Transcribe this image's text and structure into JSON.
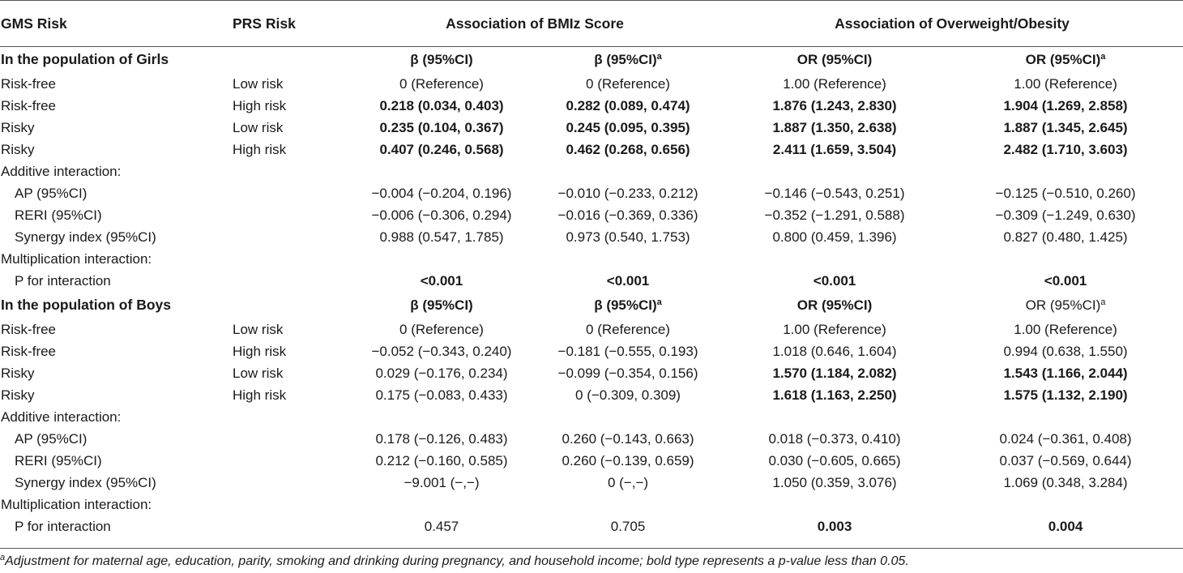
{
  "headers": {
    "col_gms": "GMS Risk",
    "col_prs": "PRS Risk",
    "group_bmiz": "Association of BMIz Score",
    "group_ow": "Association of Overweight/Obesity"
  },
  "subheaders": {
    "beta_label": "β (95%CI)",
    "or_label": "OR (95%CI)",
    "adjusted_mark": "a"
  },
  "sections": [
    {
      "title": "In the population of Girls",
      "rows": [
        {
          "gms": "Risk-free",
          "prs": "Low risk",
          "v1": "0 (Reference)",
          "v2": "0 (Reference)",
          "v3": "1.00 (Reference)",
          "v4": "1.00 (Reference)"
        },
        {
          "gms": "Risk-free",
          "prs": "High risk",
          "v1": "0.218 (0.034, 0.403)",
          "v2": "0.282 (0.089, 0.474)",
          "v3": "1.876 (1.243, 2.830)",
          "v4": "1.904 (1.269, 2.858)"
        },
        {
          "gms": "Risky",
          "prs": "Low risk",
          "v1": "0.235 (0.104, 0.367)",
          "v2": "0.245 (0.095, 0.395)",
          "v3": "1.887 (1.350, 2.638)",
          "v4": "1.887 (1.345, 2.645)"
        },
        {
          "gms": "Risky",
          "prs": "High risk",
          "v1": "0.407 (0.246, 0.568)",
          "v2": "0.462 (0.268, 0.656)",
          "v3": "2.411 (1.659, 3.504)",
          "v4": "2.482 (1.710, 3.603)"
        }
      ],
      "additive_label": "Additive interaction:",
      "additive": [
        {
          "label": "AP (95%CI)",
          "v1": "−0.004 (−0.204, 0.196)",
          "v2": "−0.010 (−0.233, 0.212)",
          "v3": "−0.146 (−0.543, 0.251)",
          "v4": "−0.125 (−0.510, 0.260)"
        },
        {
          "label": "RERI (95%CI)",
          "v1": "−0.006 (−0.306, 0.294)",
          "v2": "−0.016 (−0.369, 0.336)",
          "v3": "−0.352 (−1.291, 0.588)",
          "v4": "−0.309 (−1.249, 0.630)"
        },
        {
          "label": "Synergy index (95%CI)",
          "v1": "0.988 (0.547, 1.785)",
          "v2": "0.973 (0.540, 1.753)",
          "v3": "0.800 (0.459, 1.396)",
          "v4": "0.827 (0.480, 1.425)"
        }
      ],
      "mult_label": "Multiplication interaction:",
      "p_label": "P for interaction",
      "p": {
        "v1": "<0.001",
        "v2": "<0.001",
        "v3": "<0.001",
        "v4": "<0.001"
      }
    },
    {
      "title": "In the population of Boys",
      "rows": [
        {
          "gms": "Risk-free",
          "prs": "Low risk",
          "v1": "0 (Reference)",
          "v2": "0 (Reference)",
          "v3": "1.00 (Reference)",
          "v4": "1.00 (Reference)"
        },
        {
          "gms": "Risk-free",
          "prs": "High risk",
          "v1": "−0.052 (−0.343, 0.240)",
          "v2": "−0.181 (−0.555, 0.193)",
          "v3": "1.018 (0.646, 1.604)",
          "v4": "0.994 (0.638, 1.550)"
        },
        {
          "gms": "Risky",
          "prs": "Low risk",
          "v1": "0.029 (−0.176, 0.234)",
          "v2": "−0.099 (−0.354, 0.156)",
          "v3": "1.570 (1.184, 2.082)",
          "v4": "1.543 (1.166, 2.044)"
        },
        {
          "gms": "Risky",
          "prs": "High risk",
          "v1": "0.175 (−0.083, 0.433)",
          "v2": "0 (−0.309, 0.309)",
          "v3": "1.618 (1.163, 2.250)",
          "v4": "1.575 (1.132, 2.190)"
        }
      ],
      "additive_label": "Additive interaction:",
      "additive": [
        {
          "label": "AP (95%CI)",
          "v1": "0.178 (−0.126, 0.483)",
          "v2": "0.260 (−0.143, 0.663)",
          "v3": "0.018 (−0.373, 0.410)",
          "v4": "0.024 (−0.361, 0.408)"
        },
        {
          "label": "RERI (95%CI)",
          "v1": "0.212 (−0.160, 0.585)",
          "v2": "0.260 (−0.139, 0.659)",
          "v3": "0.030 (−0.605, 0.665)",
          "v4": "0.037 (−0.569, 0.644)"
        },
        {
          "label": "Synergy index (95%CI)",
          "v1": "−9.001 (−,−)",
          "v2": "0 (−,−)",
          "v3": "1.050 (0.359, 3.076)",
          "v4": "1.069 (0.348, 3.284)"
        }
      ],
      "mult_label": "Multiplication interaction:",
      "p_label": "P for interaction",
      "p": {
        "v1": "0.457",
        "v2": "0.705",
        "v3": "0.003",
        "v4": "0.004"
      }
    }
  ],
  "footnote": {
    "mark": "a",
    "text": "Adjustment for maternal age, education, parity, smoking and drinking during pregnancy, and household income; bold type represents a p-value less than 0.05."
  }
}
